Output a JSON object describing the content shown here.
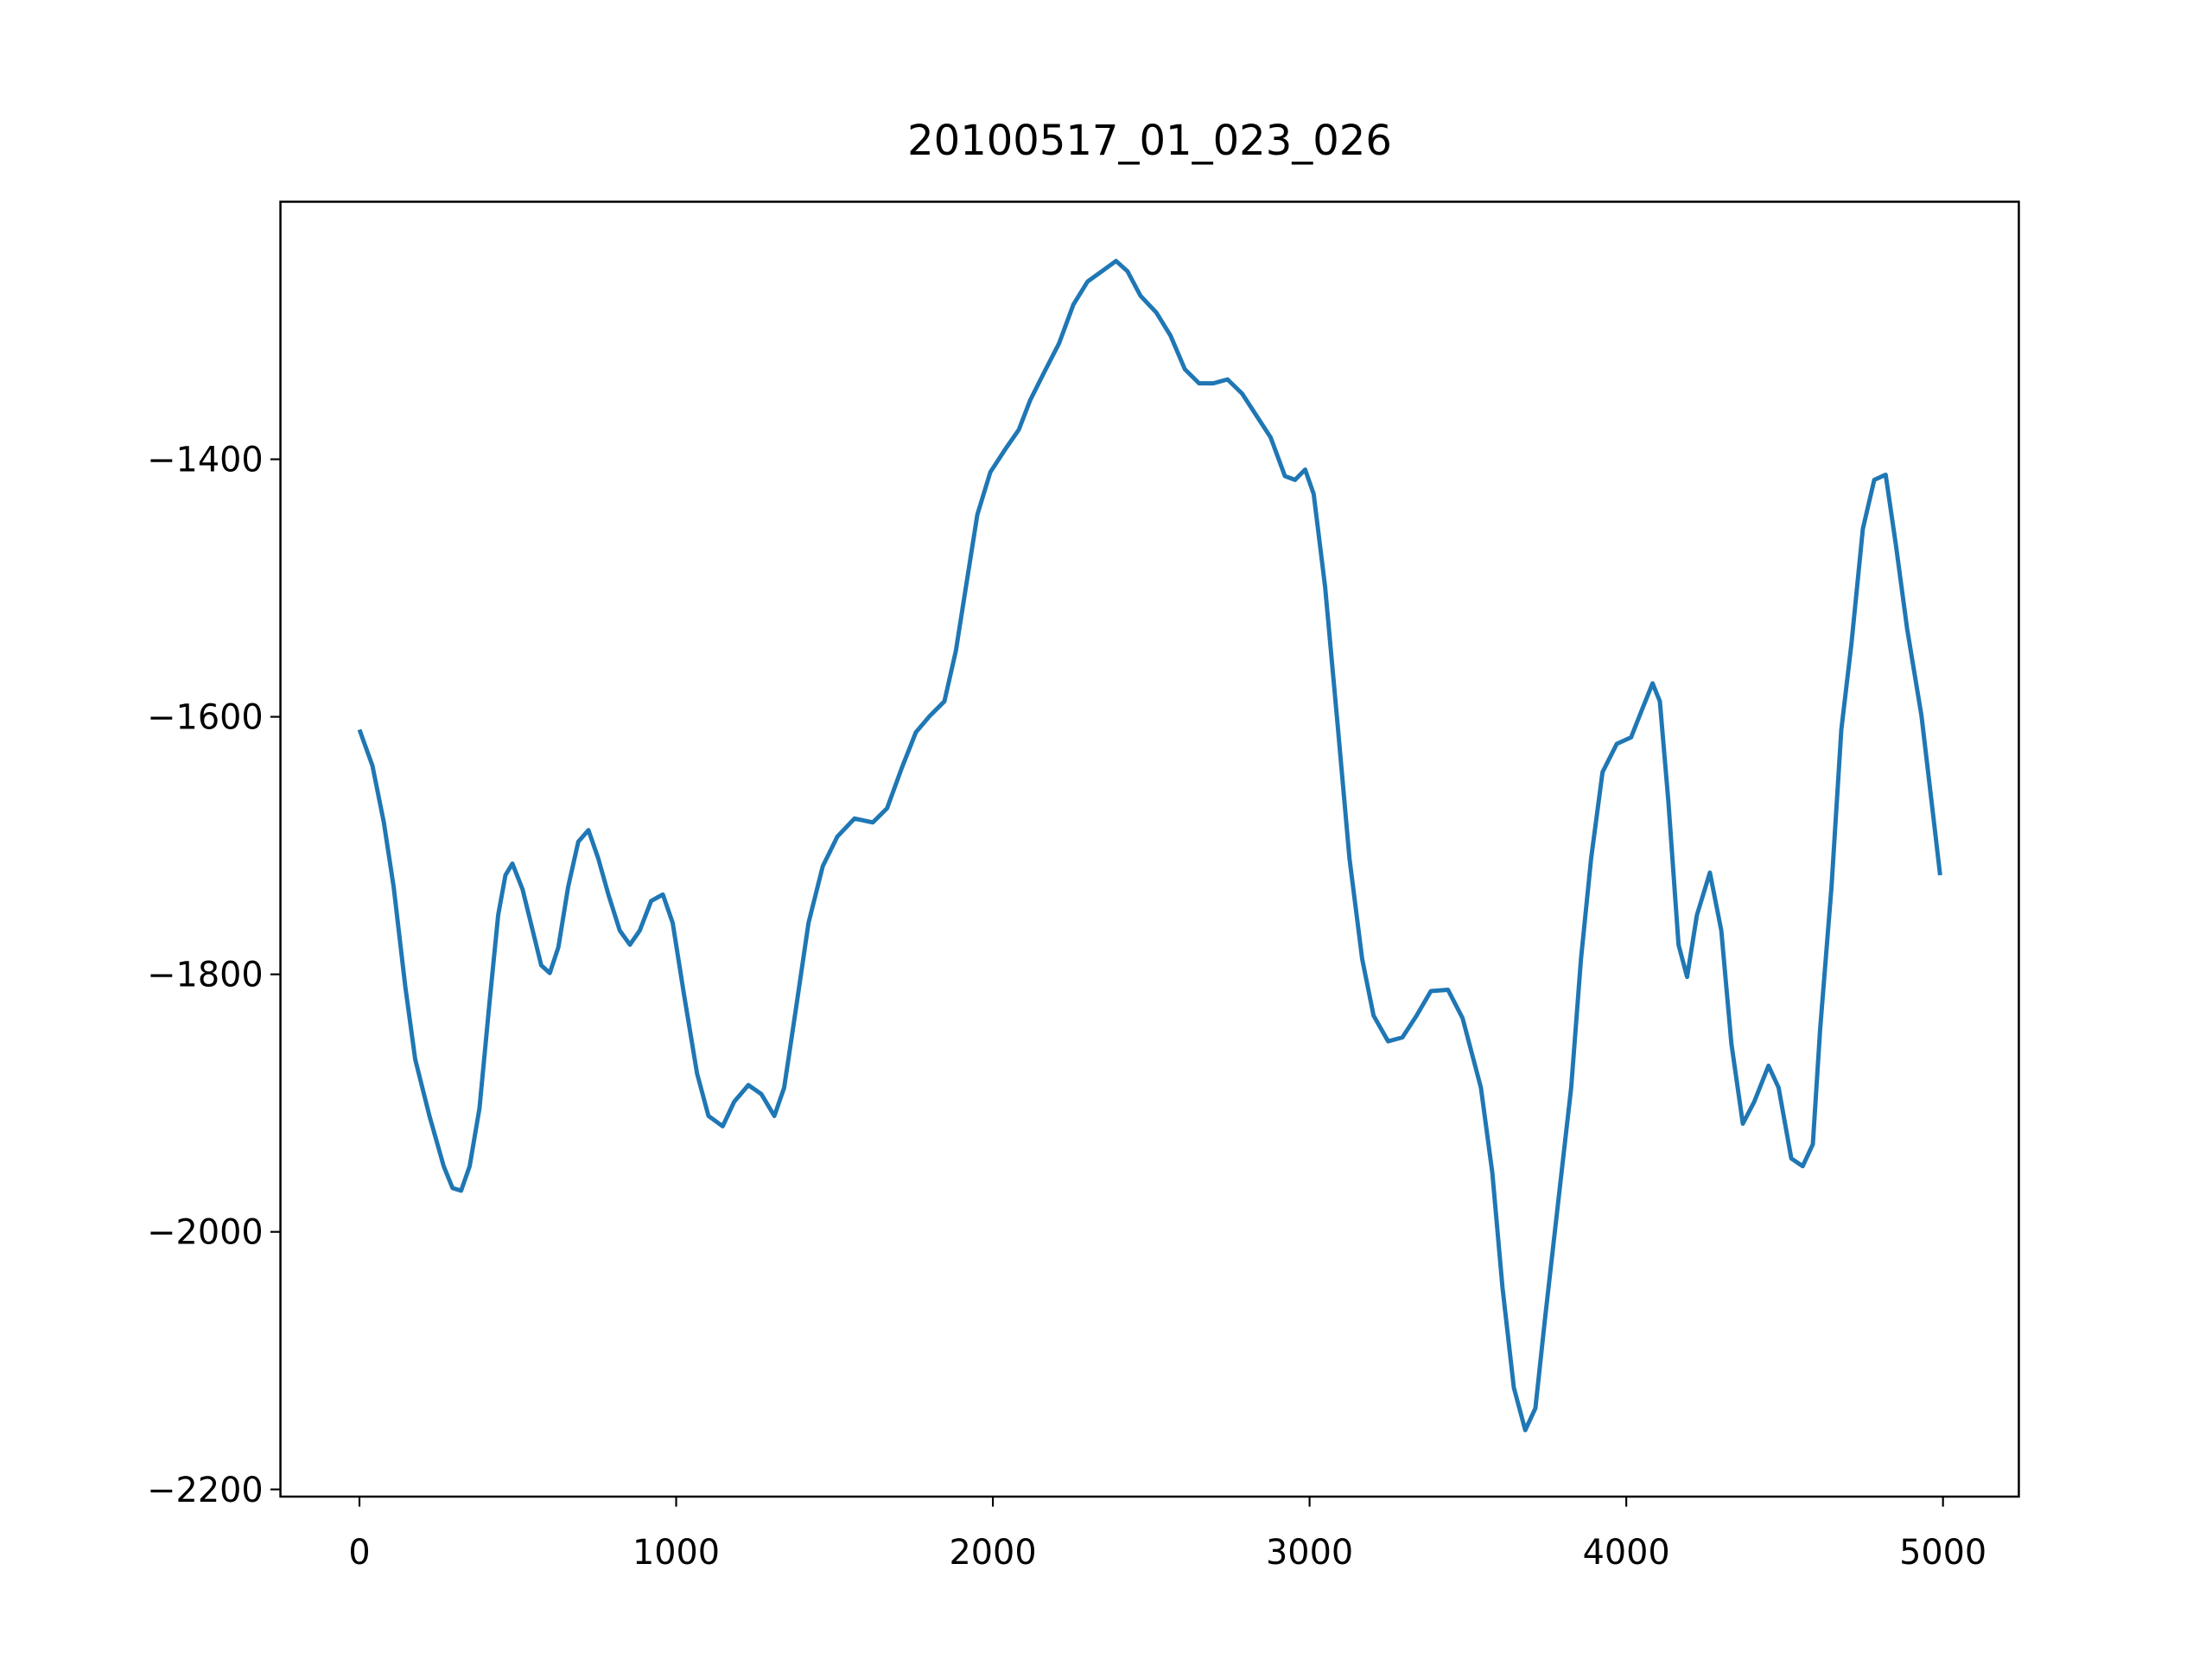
{
  "chart_data": {
    "type": "line",
    "title": "20100517_01_023_026",
    "x": [
      0,
      41,
      77,
      108,
      145,
      176,
      221,
      266,
      294,
      321,
      348,
      379,
      411,
      438,
      461,
      483,
      515,
      547,
      574,
      601,
      628,
      659,
      691,
      723,
      754,
      786,
      822,
      854,
      885,
      921,
      958,
      989,
      1025,
      1066,
      1102,
      1147,
      1183,
      1228,
      1269,
      1310,
      1341,
      1378,
      1418,
      1463,
      1509,
      1563,
      1621,
      1666,
      1712,
      1757,
      1802,
      1847,
      1883,
      1915,
      1951,
      1992,
      2037,
      2082,
      2118,
      2163,
      2209,
      2254,
      2299,
      2344,
      2389,
      2425,
      2466,
      2516,
      2561,
      2606,
      2651,
      2696,
      2741,
      2787,
      2832,
      2877,
      2922,
      2954,
      2986,
      3013,
      3049,
      3090,
      3126,
      3166,
      3202,
      3248,
      3293,
      3338,
      3383,
      3437,
      3483,
      3541,
      3577,
      3609,
      3645,
      3681,
      3713,
      3744,
      3790,
      3826,
      3857,
      3889,
      3925,
      3970,
      4015,
      4052,
      4083,
      4106,
      4133,
      4165,
      4192,
      4223,
      4264,
      4300,
      4332,
      4368,
      4404,
      4449,
      4481,
      4521,
      4557,
      4589,
      4612,
      4648,
      4679,
      4711,
      4747,
      4783,
      4819,
      4851,
      4887,
      4932,
      4964,
      4991
    ],
    "series": [
      {
        "name": "series",
        "color": "#1f77b4",
        "values": [
          -1610,
          -1638,
          -1682,
          -1732,
          -1810,
          -1866,
          -1910,
          -1949,
          -1966,
          -1968,
          -1949,
          -1904,
          -1821,
          -1754,
          -1723,
          -1714,
          -1734,
          -1766,
          -1793,
          -1799,
          -1779,
          -1732,
          -1697,
          -1688,
          -1710,
          -1738,
          -1766,
          -1777,
          -1766,
          -1743,
          -1738,
          -1760,
          -1816,
          -1877,
          -1910,
          -1918,
          -1899,
          -1886,
          -1893,
          -1910,
          -1888,
          -1827,
          -1760,
          -1716,
          -1693,
          -1679,
          -1682,
          -1671,
          -1640,
          -1612,
          -1599,
          -1588,
          -1549,
          -1499,
          -1443,
          -1410,
          -1393,
          -1377,
          -1354,
          -1332,
          -1310,
          -1280,
          -1262,
          -1254,
          -1246,
          -1254,
          -1273,
          -1286,
          -1304,
          -1330,
          -1341,
          -1341,
          -1338,
          -1349,
          -1366,
          -1383,
          -1413,
          -1416,
          -1408,
          -1427,
          -1499,
          -1610,
          -1710,
          -1788,
          -1832,
          -1852,
          -1849,
          -1832,
          -1813,
          -1812,
          -1834,
          -1888,
          -1954,
          -2043,
          -2121,
          -2154,
          -2137,
          -2066,
          -1966,
          -1888,
          -1788,
          -1710,
          -1643,
          -1621,
          -1616,
          -1593,
          -1574,
          -1588,
          -1666,
          -1777,
          -1802,
          -1754,
          -1721,
          -1766,
          -1854,
          -1916,
          -1899,
          -1871,
          -1888,
          -1943,
          -1949,
          -1932,
          -1843,
          -1732,
          -1610,
          -1543,
          -1454,
          -1416,
          -1412,
          -1466,
          -1532,
          -1599,
          -1666,
          -1723
        ]
      }
    ],
    "xlim": [
      -249.5,
      5239.5
    ],
    "ylim": [
      -2205.6,
      -1200
    ],
    "xticks": [
      0,
      1000,
      2000,
      3000,
      4000,
      5000
    ],
    "yticks": [
      {
        "value": -1400,
        "label": "−1400"
      },
      {
        "value": -1600,
        "label": "−1600"
      },
      {
        "value": -1800,
        "label": "−1800"
      },
      {
        "value": -2000,
        "label": "−2000"
      },
      {
        "value": -2200,
        "label": "−2200"
      }
    ]
  }
}
